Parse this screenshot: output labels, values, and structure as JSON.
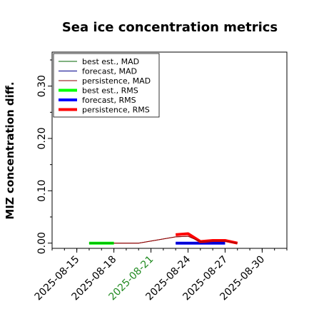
{
  "chart_data": {
    "type": "line",
    "title": "Sea ice concentration metrics",
    "xlabel": "",
    "ylabel": "MIZ concentration diff.",
    "xlim": [
      "2025-08-13",
      "2025-09-01"
    ],
    "ylim": [
      -0.01,
      0.365
    ],
    "yticks": [
      0.0,
      0.1,
      0.2,
      0.3
    ],
    "ytick_labels": [
      "0.00",
      "0.10",
      "0.20",
      "0.30"
    ],
    "yticks_minor": [
      0.05,
      0.15,
      0.25,
      0.35
    ],
    "xticks": [
      "2025-08-15",
      "2025-08-18",
      "2025-08-21",
      "2025-08-24",
      "2025-08-27",
      "2025-08-30"
    ],
    "highlight_xtick": "2025-08-21",
    "highlight_color": "#228b22",
    "grid": false,
    "legend_position": "top-left",
    "series": [
      {
        "name": "best est., MAD",
        "color": "#006400",
        "width": 1,
        "x": [
          "2025-08-16",
          "2025-08-18"
        ],
        "y": [
          0.0,
          0.0
        ]
      },
      {
        "name": "forecast,  MAD",
        "color": "#00008b",
        "width": 1,
        "x": [
          "2025-08-23",
          "2025-08-25",
          "2025-08-27"
        ],
        "y": [
          0.0,
          0.0,
          0.0
        ]
      },
      {
        "name": "persistence, MAD",
        "color": "#8b0000",
        "width": 1,
        "x": [
          "2025-08-18",
          "2025-08-20",
          "2025-08-23",
          "2025-08-24",
          "2025-08-25",
          "2025-08-26",
          "2025-08-27",
          "2025-08-28"
        ],
        "y": [
          0.0,
          0.0,
          0.012,
          0.013,
          0.003,
          0.004,
          0.004,
          0.0
        ]
      },
      {
        "name": "best est., RMS",
        "color": "#00ff00",
        "width": 4,
        "x": [
          "2025-08-16",
          "2025-08-18"
        ],
        "y": [
          0.0,
          0.0
        ]
      },
      {
        "name": "forecast,  RMS",
        "color": "#0000ff",
        "width": 4,
        "x": [
          "2025-08-23",
          "2025-08-25",
          "2025-08-27"
        ],
        "y": [
          0.0,
          0.0,
          0.0
        ]
      },
      {
        "name": "persistence, RMS",
        "color": "#ff0000",
        "width": 4,
        "x": [
          "2025-08-23",
          "2025-08-24",
          "2025-08-25",
          "2025-08-26",
          "2025-08-27",
          "2025-08-28"
        ],
        "y": [
          0.016,
          0.018,
          0.003,
          0.005,
          0.005,
          0.0
        ]
      }
    ]
  }
}
